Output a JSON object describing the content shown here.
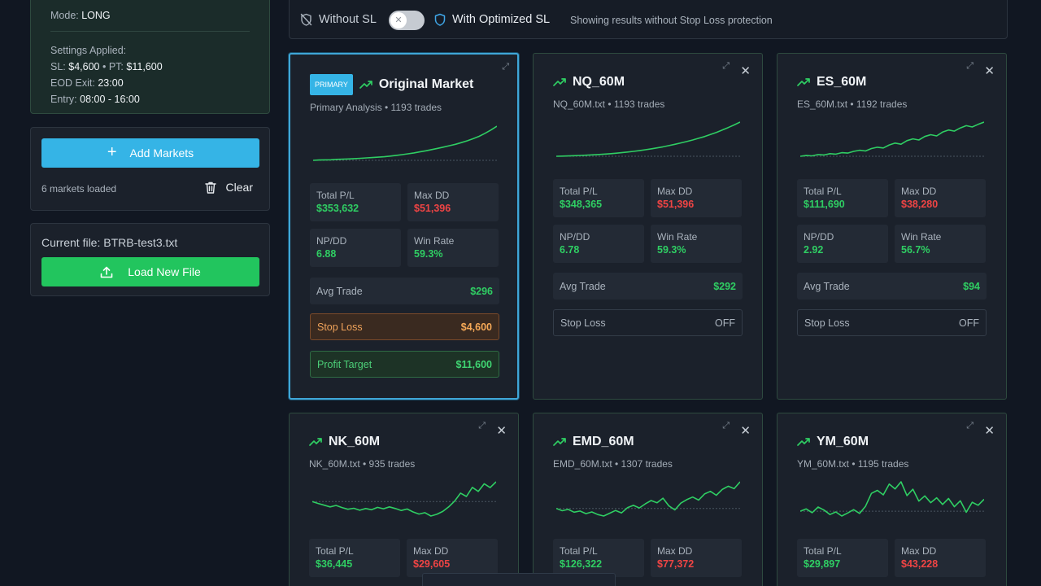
{
  "summary": {
    "mode_label": "Mode:",
    "mode_value": "LONG",
    "settings_label": "Settings Applied:",
    "sl_label": "SL:",
    "sl_value": "$4,600",
    "sep": "•",
    "pt_label": "PT:",
    "pt_value": "$11,600",
    "eod_label": "EOD Exit:",
    "eod_value": "23:00",
    "entry_label": "Entry:",
    "entry_value": "08:00 - 16:00"
  },
  "markets_panel": {
    "add_label": "Add Markets",
    "count_text": "6 markets loaded",
    "clear_label": "Clear"
  },
  "file_panel": {
    "current_file": "Current file: BTRB-test3.txt",
    "load_label": "Load New File"
  },
  "toggle": {
    "without_label": "Without SL",
    "with_label": "With Optimized SL",
    "switch_state": "off",
    "info": "Showing results without Stop Loss protection"
  },
  "colors": {
    "accent": "#35b4e6",
    "positive": "#2fce63",
    "negative": "#ef4444",
    "go": "#22c55e"
  },
  "cards": [
    {
      "badge": "PRIMARY",
      "title": "Original Market",
      "sub": "Primary Analysis • 1193 trades",
      "series": [
        0,
        0.3,
        0.5,
        0.6,
        1,
        1.2,
        1.5,
        1.8,
        2.1,
        2.6,
        2.9,
        3.3,
        3.8,
        4.5,
        5.2,
        6,
        6.9,
        7.8,
        8.9,
        10,
        11.3,
        12.6,
        14,
        15.4,
        16.9,
        18.7,
        20.6,
        22.8,
        25.3,
        28.5,
        32,
        36
      ],
      "total_pl_label": "Total P/L",
      "total_pl": "$353,632",
      "max_dd_label": "Max DD",
      "max_dd": "$51,396",
      "npdd_label": "NP/DD",
      "npdd": "6.88",
      "win_label": "Win Rate",
      "win": "59.3%",
      "avg_label": "Avg Trade",
      "avg": "$296",
      "sl_label": "Stop Loss",
      "sl": "$4,600",
      "pt_label": "Profit Target",
      "pt": "$11,600"
    },
    {
      "title": "NQ_60M",
      "sub": "NQ_60M.txt • 1193 trades",
      "series": [
        0,
        0.2,
        0.4,
        0.6,
        0.9,
        1.2,
        1.5,
        1.9,
        2.3,
        2.8,
        3.3,
        3.9,
        4.6,
        5.4,
        6.2,
        7.1,
        8.1,
        9.2,
        10.4,
        11.7,
        13.1,
        14.6,
        16.2,
        17.9,
        19.7,
        21.6,
        23.8,
        26.2,
        28.8,
        31.5,
        34.4,
        37.5
      ],
      "total_pl_label": "Total P/L",
      "total_pl": "$348,365",
      "max_dd_label": "Max DD",
      "max_dd": "$51,396",
      "npdd_label": "NP/DD",
      "npdd": "6.78",
      "win_label": "Win Rate",
      "win": "59.3%",
      "avg_label": "Avg Trade",
      "avg": "$292",
      "sl_label": "Stop Loss",
      "sl": "OFF"
    },
    {
      "title": "ES_60M",
      "sub": "ES_60M.txt • 1192 trades",
      "series": [
        0,
        0.5,
        0.3,
        1.2,
        0.9,
        1.8,
        1.5,
        2.5,
        2.2,
        3.4,
        4.2,
        3.7,
        5.4,
        6.3,
        5.8,
        7.9,
        9.2,
        8.4,
        10.9,
        12.2,
        11.4,
        13.8,
        15.1,
        14.2,
        16.9,
        18.4,
        17.6,
        19.8,
        21.4,
        20.5,
        22.3,
        23.9
      ],
      "total_pl_label": "Total P/L",
      "total_pl": "$111,690",
      "max_dd_label": "Max DD",
      "max_dd": "$38,280",
      "npdd_label": "NP/DD",
      "npdd": "2.92",
      "win_label": "Win Rate",
      "win": "56.7%",
      "avg_label": "Avg Trade",
      "avg": "$94",
      "sl_label": "Stop Loss",
      "sl": "OFF"
    },
    {
      "title": "NK_60M",
      "sub": "NK_60M.txt • 935 trades",
      "series": [
        0,
        -0.8,
        -1.5,
        -2.2,
        -1.6,
        -2.5,
        -3.2,
        -2.8,
        -3.6,
        -2.9,
        -3.4,
        -2.4,
        -3,
        -2.2,
        -2.9,
        -3.7,
        -3.1,
        -4.3,
        -5.2,
        -4.6,
        -6,
        -5.3,
        -4.1,
        -2.2,
        0.2,
        3.5,
        2.1,
        5.9,
        4.2,
        7.4,
        5.8,
        8.2
      ],
      "total_pl_label": "Total P/L",
      "total_pl": "$36,445",
      "max_dd_label": "Max DD",
      "max_dd": "$29,605"
    },
    {
      "title": "EMD_60M",
      "sub": "EMD_60M.txt • 1307 trades",
      "series": [
        0,
        -1.2,
        -0.5,
        -2,
        -1.4,
        -2.8,
        -1.9,
        -3.3,
        -4.1,
        -2.6,
        -1.1,
        -2.4,
        0.4,
        1.7,
        0.3,
        2.5,
        4.3,
        3.1,
        5.6,
        1.4,
        -0.8,
        2.9,
        4.8,
        6.2,
        4.6,
        7.9,
        9.3,
        7.2,
        10.4,
        12.1,
        10.8,
        14.5
      ],
      "total_pl_label": "Total P/L",
      "total_pl": "$126,322",
      "max_dd_label": "Max DD",
      "max_dd": "$77,372"
    },
    {
      "title": "YM_60M",
      "sub": "YM_60M.txt • 1195 trades",
      "series": [
        0,
        0.6,
        -0.4,
        1.1,
        0.3,
        -0.9,
        -0.2,
        -1.3,
        -0.5,
        0.4,
        -0.6,
        1.3,
        4.8,
        5.6,
        4.4,
        7.3,
        6,
        7.9,
        4.2,
        5.9,
        2.7,
        4.1,
        2.3,
        3.6,
        1.8,
        3.4,
        1.2,
        2.8,
        -0.3,
        2.4,
        1.6,
        3.2
      ],
      "total_pl_label": "Total P/L",
      "total_pl": "$29,897",
      "max_dd_label": "Max DD",
      "max_dd": "$43,228"
    }
  ]
}
